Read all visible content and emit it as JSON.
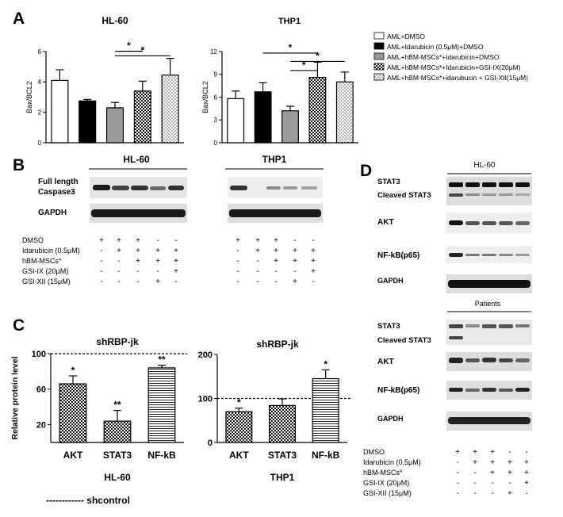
{
  "panel_labels": {
    "A": "A",
    "B": "B",
    "C": "C",
    "D": "D"
  },
  "panel_a": {
    "legend": [
      {
        "label": "AML+DMSO",
        "pattern": "white"
      },
      {
        "label": "AML+Idarubicin (0.5μM)+DMSO",
        "pattern": "black"
      },
      {
        "label": "AML+hBM-MSCs*+Idarubicin+DMSO",
        "pattern": "gray"
      },
      {
        "label": "AML+hBM-MSCs*+Idarubicin+GSI-IX(20μM)",
        "pattern": "check"
      },
      {
        "label": "AML+hBM-MSCs*+idarubucin + GSI-XII(15μM)",
        "pattern": "dots"
      }
    ]
  },
  "panel_b": {
    "titles": {
      "hl60": "HL-60",
      "thp1": "THP1"
    },
    "row_labels": {
      "caspase_line1": "Full length",
      "caspase_line2": "Caspase3",
      "gapdh": "GAPDH"
    },
    "treat_labels": [
      "DMSO",
      "Idarubicin (0.5μM)",
      "hBM-MSCs*",
      "GSI-IX (20μM)",
      "GSI-XII (15μM)"
    ],
    "signs": [
      [
        "+",
        "+",
        "+",
        "-",
        "-"
      ],
      [
        "-",
        "+",
        "+",
        "+",
        "+"
      ],
      [
        "-",
        "-",
        "+",
        "+",
        "+"
      ],
      [
        "-",
        "-",
        "-",
        "-",
        "+"
      ],
      [
        "-",
        "-",
        "-",
        "+",
        "-"
      ]
    ]
  },
  "panel_c": {
    "legend": "------------ shcontrol"
  },
  "panel_d": {
    "title_hl60": "HL-60",
    "title_patients": "Patients",
    "row_labels": {
      "stat3": "STAT3",
      "cleaved": "Cleaved STAT3",
      "akt": "AKT",
      "nfkb": "NF-kB(p65)",
      "gapdh": "GAPDH"
    },
    "treat_labels": [
      "DMSO",
      "Idarubicin (0.5μM)",
      "hBM-MSCs*",
      "GSI-IX (20μM)",
      "GSI-XII (15μM)"
    ],
    "signs": [
      [
        "+",
        "+",
        "+",
        "-",
        "-"
      ],
      [
        "-",
        "+",
        "+",
        "+",
        "+"
      ],
      [
        "-",
        "-",
        "+",
        "+",
        "+"
      ],
      [
        "-",
        "-",
        "-",
        "-",
        "+"
      ],
      [
        "-",
        "-",
        "-",
        "+",
        "-"
      ]
    ]
  },
  "chart_data": [
    {
      "id": "a_hl60",
      "type": "bar",
      "title": "HL-60",
      "ylabel": "Bax/BCL2",
      "xlabel": "",
      "ylim": [
        0,
        6
      ],
      "yticks": [
        0,
        2,
        4,
        6
      ],
      "values": [
        4.1,
        2.75,
        2.3,
        3.4,
        4.45
      ],
      "errors": [
        0.7,
        0.1,
        0.35,
        0.65,
        1.1
      ],
      "patterns": [
        "white",
        "black",
        "gray",
        "check",
        "dots"
      ],
      "significance": [
        {
          "from": 2,
          "to": 3,
          "label": "*"
        },
        {
          "from": 2,
          "to": 4,
          "label": "*"
        }
      ]
    },
    {
      "id": "a_thp1",
      "type": "bar",
      "title": "THP1",
      "ylabel": "Bax/BCL2",
      "xlabel": "",
      "ylim": [
        0,
        12
      ],
      "yticks": [
        0,
        3,
        6,
        9,
        12
      ],
      "values": [
        5.8,
        6.7,
        4.2,
        8.6,
        8.0
      ],
      "errors": [
        1.0,
        1.2,
        0.6,
        2.0,
        1.3
      ],
      "patterns": [
        "white",
        "black",
        "gray",
        "check",
        "dots"
      ],
      "significance": [
        {
          "from": 2,
          "to": 3,
          "label": "*"
        },
        {
          "from": 2,
          "to": 4,
          "label": "*"
        },
        {
          "from": 1,
          "to": 3,
          "label": "*"
        }
      ]
    },
    {
      "id": "c_hl60",
      "type": "bar",
      "title": "shRBP-jk",
      "ylabel": "Relative protein level",
      "xlabel": "HL-60",
      "ylim": [
        0,
        100
      ],
      "yticks": [
        20,
        60,
        100
      ],
      "categories": [
        "AKT",
        "STAT3",
        "NF-kB"
      ],
      "values": [
        66,
        24,
        84
      ],
      "errors": [
        9,
        12,
        3
      ],
      "patterns": [
        "check",
        "check",
        "hstripe"
      ],
      "stars": [
        "*",
        "**",
        "**"
      ],
      "reference": 100
    },
    {
      "id": "c_thp1",
      "type": "bar",
      "title": "shRBP-jk",
      "ylabel": "",
      "xlabel": "THP1",
      "ylim": [
        0,
        200
      ],
      "yticks": [
        0,
        100,
        200
      ],
      "categories": [
        "AKT",
        "STAT3",
        "NF-kB"
      ],
      "values": [
        70,
        84,
        145
      ],
      "errors": [
        8,
        15,
        20
      ],
      "patterns": [
        "check",
        "check",
        "hstripe"
      ],
      "stars": [
        "*",
        "",
        "*"
      ],
      "reference": 100
    }
  ]
}
